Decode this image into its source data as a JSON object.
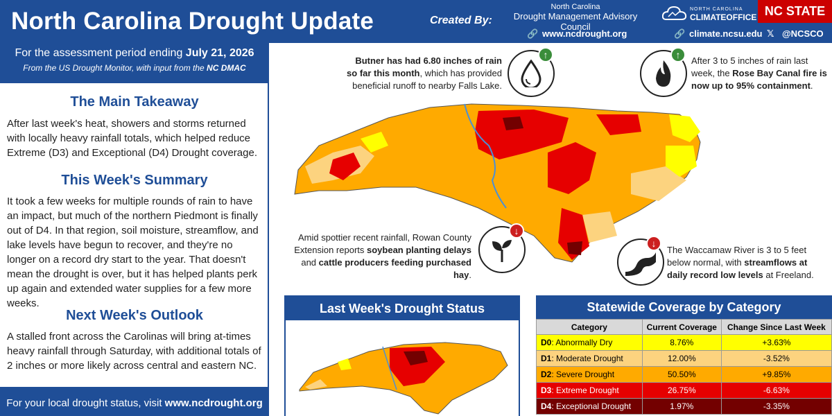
{
  "header": {
    "title": "North Carolina Drought Update",
    "created_by": "Created By:",
    "dmac_small": "North Carolina",
    "dmac_big": "Drought Management Advisory Council",
    "link1": "www.ncdrought.org",
    "link2": "climate.ncsu.edu",
    "link3": "@NCSCO",
    "cco_line1": "NORTH CAROLINA",
    "cco_line2": "CLIMATEOFFICE",
    "ncstate": "NC STATE"
  },
  "assessment": {
    "prefix": "For the assessment period ending ",
    "date": "July 21, 2026",
    "source_prefix": "From the US Drought Monitor, with input from the ",
    "source_org": "NC DMAC"
  },
  "main_takeaway": {
    "heading": "The Main Takeaway",
    "text": "After last week's heat, showers and storms returned with locally heavy rainfall totals, which helped reduce Extreme (D3) and Exceptional (D4) Drought coverage."
  },
  "summary": {
    "heading": "This Week's Summary",
    "text": "It took a few weeks for multiple rounds of rain to have an impact, but much of the northern Piedmont is finally out of D4. In that region, soil moisture, streamflow, and lake levels have begun to recover, and they're no longer on a record dry start to the year. That doesn't mean the drought is over, but it has helped plants perk up again and extended water supplies for a few more weeks."
  },
  "outlook": {
    "heading": "Next Week's Outlook",
    "text": "A stalled front across the Carolinas will bring at-times heavy rainfall through Saturday, with additional totals of 2 inches or more likely across central and eastern NC."
  },
  "footer": {
    "prefix": "For your local drought status, visit ",
    "link": "www.ncdrought.org"
  },
  "callouts": {
    "butner_bold1": "Butner has had 6.80 inches of rain so",
    "butner_bold2": "far this month",
    "butner_rest": ", which has provided beneficial runoff to nearby Falls Lake.",
    "fire_pre": "After 3 to 5 inches of rain last week, the ",
    "fire_bold": "Rose Bay Canal fire is now up to 95% containment",
    "fire_post": ".",
    "rowan_pre": "Amid spottier recent rainfall, Rowan County Extension reports ",
    "rowan_bold1": "soybean planting delays",
    "rowan_mid": " and ",
    "rowan_bold2": "cattle producers feeding purchased hay",
    "rowan_post": ".",
    "wacc_pre": "The Waccamaw River is 3 to 5 feet below normal, with ",
    "wacc_bold": "streamflows at daily record low levels",
    "wacc_post": " at Freeland."
  },
  "last_week": {
    "title": "Last Week's Drought Status"
  },
  "coverage": {
    "title": "Statewide Coverage by Category",
    "headers": [
      "Category",
      "Current Coverage",
      "Change Since Last Week"
    ],
    "rows": [
      {
        "code": "D0",
        "name": ": Abnormally Dry",
        "current": "8.76%",
        "change": "+3.63%",
        "color": "#ffff00",
        "text": "#000000"
      },
      {
        "code": "D1",
        "name": ": Moderate Drought",
        "current": "12.00%",
        "change": "-3.52%",
        "color": "#fcd37f",
        "text": "#000000"
      },
      {
        "code": "D2",
        "name": ": Severe Drought",
        "current": "50.50%",
        "change": "+9.85%",
        "color": "#ffaa00",
        "text": "#000000"
      },
      {
        "code": "D3",
        "name": ": Extreme Drought",
        "current": "26.75%",
        "change": "-6.63%",
        "color": "#e60000",
        "text": "#ffffff"
      },
      {
        "code": "D4",
        "name": ": Exceptional Drought",
        "current": "1.97%",
        "change": "-3.35%",
        "color": "#730000",
        "text": "#ffffff"
      }
    ]
  },
  "colors": {
    "brand_blue": "#1f4e97",
    "d0": "#ffff00",
    "d1": "#fcd37f",
    "d2": "#ffaa00",
    "d3": "#e60000",
    "d4": "#730000",
    "ncstate_red": "#cc0000"
  },
  "icons": [
    "droplet-icon",
    "fire-icon",
    "plant-icon",
    "river-icon",
    "arrow-up-icon",
    "arrow-down-icon",
    "link-icon",
    "x-logo-icon"
  ]
}
